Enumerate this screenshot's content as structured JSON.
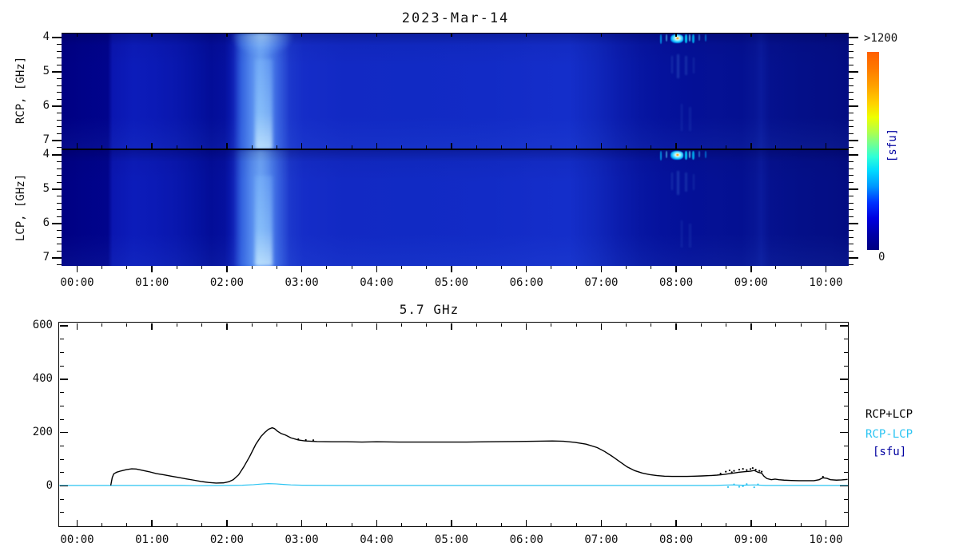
{
  "colors": {
    "accent_cyan": "#2bc4f2",
    "navy_unit": "#0000a0",
    "line_black": "#000000",
    "spectrogram_base_blue": "#1229c4"
  },
  "chart_data": [
    {
      "type": "heatmap",
      "title": "2023-Mar-14",
      "ylabel_rcp": "RCP, [GHz]",
      "ylabel_lcp": "LCP, [GHz]",
      "freq_ticks": [
        4,
        5,
        6,
        7
      ],
      "freq_minor_step_ghz": 0.2,
      "freq_range_ghz": [
        3.86,
        7.23
      ],
      "time_range_hours": [
        -0.18,
        10.33
      ],
      "hour_labels": [
        "00:00",
        "01:00",
        "02:00",
        "03:00",
        "04:00",
        "05:00",
        "06:00",
        "07:00",
        "08:00",
        "09:00",
        "10:00"
      ],
      "minor_time_step_hours": 0.3333,
      "colorbar": {
        "max_label": ">1200",
        "min_label": "0",
        "unit_label": "[sfu]",
        "stops": [
          {
            "p": 0,
            "c": "#000080"
          },
          {
            "p": 8,
            "c": "#0000a8"
          },
          {
            "p": 16,
            "c": "#0000e0"
          },
          {
            "p": 24,
            "c": "#0032ff"
          },
          {
            "p": 32,
            "c": "#0096ff"
          },
          {
            "p": 40,
            "c": "#00daff"
          },
          {
            "p": 47,
            "c": "#2effd8"
          },
          {
            "p": 54,
            "c": "#78ff8c"
          },
          {
            "p": 60,
            "c": "#b4ff46"
          },
          {
            "p": 67,
            "c": "#eeff00"
          },
          {
            "p": 74,
            "c": "#ffd200"
          },
          {
            "p": 83,
            "c": "#ffa000"
          },
          {
            "p": 92,
            "c": "#ff7800"
          },
          {
            "p": 100,
            "c": "#ff5f00"
          }
        ]
      },
      "background_time_profile": [
        {
          "t": -0.18,
          "c": "#000082"
        },
        {
          "t": 0.1,
          "c": "#000288"
        },
        {
          "t": 0.44,
          "c": "#01048c"
        },
        {
          "t": 0.5,
          "c": "#0a16b0"
        },
        {
          "t": 0.78,
          "c": "#0c1cba"
        },
        {
          "t": 1.05,
          "c": "#0b1ab6"
        },
        {
          "t": 1.35,
          "c": "#0917ae"
        },
        {
          "t": 1.62,
          "c": "#0512a2"
        },
        {
          "t": 1.82,
          "c": "#030d98"
        },
        {
          "t": 2.0,
          "c": "#05109e"
        },
        {
          "t": 2.12,
          "c": "#0c1eb6"
        },
        {
          "t": 2.22,
          "c": "#2553da"
        },
        {
          "t": 2.34,
          "c": "#3e74e8"
        },
        {
          "t": 2.46,
          "c": "#4c88f0"
        },
        {
          "t": 2.58,
          "c": "#4076ea"
        },
        {
          "t": 2.72,
          "c": "#2a52da"
        },
        {
          "t": 2.86,
          "c": "#1c38cc"
        },
        {
          "t": 3.05,
          "c": "#152dc8"
        },
        {
          "t": 3.6,
          "c": "#1229c4"
        },
        {
          "t": 4.5,
          "c": "#112ac4"
        },
        {
          "t": 5.5,
          "c": "#122bc6"
        },
        {
          "t": 6.2,
          "c": "#142dc9"
        },
        {
          "t": 6.6,
          "c": "#142eca"
        },
        {
          "t": 6.95,
          "c": "#1027bc"
        },
        {
          "t": 7.25,
          "c": "#0b1dae"
        },
        {
          "t": 7.55,
          "c": "#0716a2"
        },
        {
          "t": 7.85,
          "c": "#05129c"
        },
        {
          "t": 8.2,
          "c": "#041097"
        },
        {
          "t": 8.55,
          "c": "#051194"
        },
        {
          "t": 8.9,
          "c": "#041091"
        },
        {
          "t": 9.08,
          "c": "#071595"
        },
        {
          "t": 9.16,
          "c": "#0a1a9c"
        },
        {
          "t": 9.28,
          "c": "#05118e"
        },
        {
          "t": 9.7,
          "c": "#040f88"
        },
        {
          "t": 10.1,
          "c": "#040e85"
        },
        {
          "t": 10.33,
          "c": "#030c82"
        }
      ],
      "features": {
        "flare_band": {
          "t0": 2.06,
          "t1": 2.88
        },
        "flare_core": {
          "t0": 2.4,
          "t1": 2.64
        },
        "top_glow_rcp": {
          "t0": 2.1,
          "t1": 2.9
        },
        "bursts": [
          {
            "t": 7.82,
            "w": 2,
            "h": 12,
            "c": "rgba(0,190,255,0.75)"
          },
          {
            "t": 7.9,
            "w": 2,
            "h": 9,
            "c": "rgba(90,215,255,0.6)"
          },
          {
            "t": 8.04,
            "w": 16,
            "h": 11,
            "blob": true
          },
          {
            "t": 8.16,
            "w": 3,
            "h": 11,
            "c": "rgba(0,215,255,0.9)"
          },
          {
            "t": 8.21,
            "w": 2,
            "h": 9,
            "c": "rgba(130,230,255,0.75)"
          },
          {
            "t": 8.26,
            "w": 3,
            "h": 11,
            "c": "rgba(0,200,255,0.8)"
          },
          {
            "t": 8.33,
            "w": 2,
            "h": 8,
            "c": "rgba(70,190,255,0.5)"
          },
          {
            "t": 8.42,
            "w": 2,
            "h": 9,
            "c": "rgba(0,170,255,0.55)"
          }
        ],
        "echo_streaks": [
          {
            "t": 7.97,
            "top": 28,
            "h": 22,
            "o": 0.16
          },
          {
            "t": 8.05,
            "top": 26,
            "h": 30,
            "o": 0.2
          },
          {
            "t": 8.16,
            "top": 28,
            "h": 24,
            "o": 0.16
          },
          {
            "t": 8.26,
            "top": 30,
            "h": 20,
            "o": 0.13
          },
          {
            "t": 8.1,
            "top": 88,
            "h": 34,
            "o": 0.12
          },
          {
            "t": 8.21,
            "top": 92,
            "h": 30,
            "o": 0.1
          }
        ]
      }
    },
    {
      "type": "line",
      "title": "5.7 GHz",
      "x_tick_labels": [
        "00:00",
        "01:00",
        "02:00",
        "03:00",
        "04:00",
        "05:00",
        "06:00",
        "07:00",
        "08:00",
        "09:00",
        "10:00"
      ],
      "y_ticks": [
        0,
        200,
        400,
        600
      ],
      "y_minor_step": 50,
      "ylim": [
        -154,
        617
      ],
      "xlim_hours": [
        -0.25,
        10.33
      ],
      "unit_label": "[sfu]",
      "legend": [
        {
          "label": "RCP+LCP",
          "color": "#000000"
        },
        {
          "label": "RCP-LCP",
          "color": "#2bc4f2"
        },
        {
          "label": "[sfu]",
          "color": "#0000a0"
        }
      ],
      "series": [
        {
          "name": "RCP+LCP",
          "color": "#000000",
          "points": [
            [
              0.44,
              0
            ],
            [
              0.46,
              30
            ],
            [
              0.48,
              44
            ],
            [
              0.52,
              50
            ],
            [
              0.58,
              55
            ],
            [
              0.65,
              60
            ],
            [
              0.72,
              63
            ],
            [
              0.78,
              62
            ],
            [
              0.85,
              58
            ],
            [
              0.95,
              52
            ],
            [
              1.05,
              45
            ],
            [
              1.15,
              40
            ],
            [
              1.25,
              35
            ],
            [
              1.35,
              30
            ],
            [
              1.45,
              25
            ],
            [
              1.55,
              20
            ],
            [
              1.65,
              15
            ],
            [
              1.75,
              11
            ],
            [
              1.85,
              9
            ],
            [
              1.95,
              10
            ],
            [
              2.02,
              14
            ],
            [
              2.08,
              22
            ],
            [
              2.15,
              40
            ],
            [
              2.22,
              70
            ],
            [
              2.3,
              110
            ],
            [
              2.38,
              155
            ],
            [
              2.45,
              185
            ],
            [
              2.5,
              200
            ],
            [
              2.55,
              212
            ],
            [
              2.6,
              218
            ],
            [
              2.63,
              215
            ],
            [
              2.67,
              205
            ],
            [
              2.72,
              196
            ],
            [
              2.78,
              190
            ],
            [
              2.85,
              180
            ],
            [
              2.95,
              172
            ],
            [
              3.05,
              168
            ],
            [
              3.2,
              166
            ],
            [
              3.4,
              165
            ],
            [
              3.6,
              165
            ],
            [
              3.8,
              164
            ],
            [
              4.0,
              165
            ],
            [
              4.3,
              164
            ],
            [
              4.6,
              164
            ],
            [
              4.9,
              164
            ],
            [
              5.2,
              164
            ],
            [
              5.5,
              165
            ],
            [
              5.8,
              166
            ],
            [
              6.1,
              167
            ],
            [
              6.35,
              168
            ],
            [
              6.5,
              167
            ],
            [
              6.65,
              163
            ],
            [
              6.8,
              156
            ],
            [
              6.95,
              143
            ],
            [
              7.05,
              128
            ],
            [
              7.15,
              110
            ],
            [
              7.25,
              90
            ],
            [
              7.35,
              70
            ],
            [
              7.45,
              56
            ],
            [
              7.55,
              47
            ],
            [
              7.65,
              41
            ],
            [
              7.75,
              37
            ],
            [
              7.85,
              35
            ],
            [
              7.95,
              34
            ],
            [
              8.05,
              34
            ],
            [
              8.15,
              34
            ],
            [
              8.25,
              35
            ],
            [
              8.35,
              36
            ],
            [
              8.45,
              37
            ],
            [
              8.55,
              39
            ],
            [
              8.65,
              42
            ],
            [
              8.72,
              45
            ],
            [
              8.78,
              47
            ],
            [
              8.85,
              50
            ],
            [
              8.92,
              52
            ],
            [
              9.0,
              54
            ],
            [
              9.05,
              57
            ],
            [
              9.1,
              50
            ],
            [
              9.15,
              46
            ],
            [
              9.18,
              35
            ],
            [
              9.22,
              26
            ],
            [
              9.28,
              22
            ],
            [
              9.33,
              24
            ],
            [
              9.38,
              22
            ],
            [
              9.45,
              20
            ],
            [
              9.55,
              19
            ],
            [
              9.65,
              18
            ],
            [
              9.75,
              18
            ],
            [
              9.85,
              18
            ],
            [
              9.92,
              22
            ],
            [
              9.97,
              29
            ],
            [
              10.02,
              27
            ],
            [
              10.07,
              22
            ],
            [
              10.15,
              20
            ],
            [
              10.22,
              21
            ],
            [
              10.3,
              23
            ]
          ]
        },
        {
          "name": "RCP-LCP",
          "color": "#2bc4f2",
          "points": [
            [
              -0.25,
              0
            ],
            [
              1.4,
              0
            ],
            [
              1.6,
              -1
            ],
            [
              2.0,
              0
            ],
            [
              2.2,
              1
            ],
            [
              2.35,
              3
            ],
            [
              2.45,
              5
            ],
            [
              2.55,
              7
            ],
            [
              2.65,
              6
            ],
            [
              2.75,
              4
            ],
            [
              2.85,
              2
            ],
            [
              3.0,
              1
            ],
            [
              3.5,
              0
            ],
            [
              4.5,
              0
            ],
            [
              5.5,
              0
            ],
            [
              6.5,
              0
            ],
            [
              7.5,
              0
            ],
            [
              8.5,
              0
            ],
            [
              8.6,
              1
            ],
            [
              8.75,
              2
            ],
            [
              8.9,
              1
            ],
            [
              9.05,
              2
            ],
            [
              9.2,
              0
            ],
            [
              10.33,
              0
            ]
          ]
        }
      ],
      "noise_dots": {
        "black": [
          [
            2.95,
            175
          ],
          [
            3.05,
            172
          ],
          [
            3.15,
            171
          ],
          [
            8.6,
            45
          ],
          [
            8.67,
            52
          ],
          [
            8.72,
            57
          ],
          [
            8.75,
            50
          ],
          [
            8.78,
            55
          ],
          [
            8.85,
            60
          ],
          [
            8.9,
            63
          ],
          [
            8.95,
            58
          ],
          [
            9.0,
            62
          ],
          [
            9.03,
            66
          ],
          [
            9.07,
            60
          ],
          [
            9.12,
            55
          ],
          [
            9.15,
            52
          ],
          [
            9.97,
            33
          ]
        ],
        "cyan": [
          [
            8.7,
            -6
          ],
          [
            8.78,
            4
          ],
          [
            8.85,
            -5
          ],
          [
            8.9,
            -3
          ],
          [
            8.95,
            5
          ],
          [
            9.05,
            -7
          ],
          [
            9.1,
            4
          ]
        ]
      }
    }
  ]
}
